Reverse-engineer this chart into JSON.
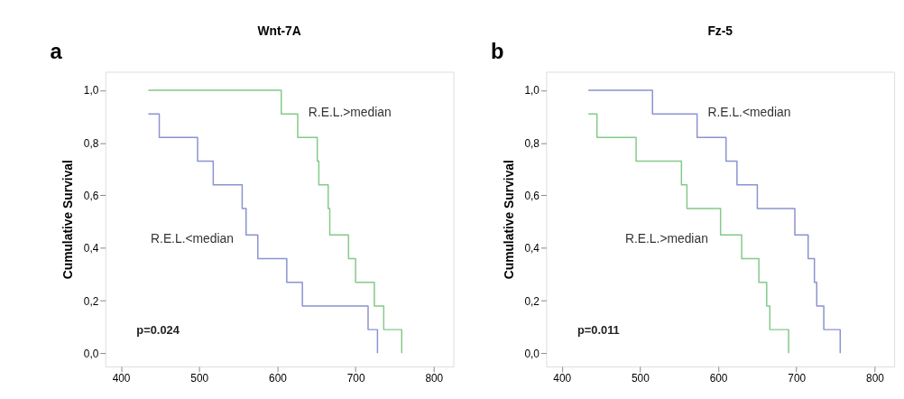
{
  "chart_data": [
    {
      "type": "step",
      "title": "Wnt-7A",
      "ylabel": "Cumulative Survival",
      "annotations": [
        "a",
        "p=0.024"
      ],
      "xlim": [
        380,
        825
      ],
      "xticks": [
        400,
        500,
        600,
        700,
        800
      ],
      "ylim": [
        -0.05,
        1.07
      ],
      "yticks": [
        {
          "value": 0,
          "label": "0,0"
        },
        {
          "value": 0.2,
          "label": "0,2"
        },
        {
          "value": 0.4,
          "label": "0,4"
        },
        {
          "value": 0.6,
          "label": "0,6"
        },
        {
          "value": 0.8,
          "label": "0,8"
        },
        {
          "value": 1,
          "label": "1,0"
        }
      ],
      "grid": false,
      "series": [
        {
          "name": "R.E.L.>median",
          "color": "#84c98a",
          "x": [
            435,
            605,
            626,
            651,
            653,
            665,
            667,
            691,
            700,
            724,
            736,
            759
          ],
          "values": [
            1,
            0.91,
            0.82,
            0.73,
            0.64,
            0.55,
            0.45,
            0.36,
            0.27,
            0.18,
            0.09,
            0
          ]
        },
        {
          "name": "R.E.L.<median",
          "color": "#8a93d0",
          "x": [
            435,
            449,
            498,
            518,
            555,
            560,
            575,
            612,
            632,
            716,
            728
          ],
          "values": [
            0.91,
            0.82,
            0.73,
            0.64,
            0.55,
            0.45,
            0.36,
            0.27,
            0.18,
            0.09,
            0
          ]
        }
      ]
    },
    {
      "type": "step",
      "title": "Fz-5",
      "ylabel": "Cumulative Survival",
      "annotations": [
        "b",
        "p=0.011"
      ],
      "xlim": [
        380,
        825
      ],
      "xticks": [
        400,
        500,
        600,
        700,
        800
      ],
      "ylim": [
        -0.05,
        1.07
      ],
      "yticks": [
        {
          "value": 0,
          "label": "0,0"
        },
        {
          "value": 0.2,
          "label": "0,2"
        },
        {
          "value": 0.4,
          "label": "0,4"
        },
        {
          "value": 0.6,
          "label": "0,6"
        },
        {
          "value": 0.8,
          "label": "0,8"
        },
        {
          "value": 1,
          "label": "1,0"
        }
      ],
      "grid": false,
      "series": [
        {
          "name": "R.E.L.<median",
          "color": "#8a93d0",
          "x": [
            434,
            516,
            573,
            610,
            624,
            650,
            698,
            715,
            723,
            726,
            735,
            756
          ],
          "values": [
            1,
            0.91,
            0.82,
            0.73,
            0.64,
            0.55,
            0.45,
            0.36,
            0.27,
            0.18,
            0.09,
            0
          ]
        },
        {
          "name": "R.E.L.>median",
          "color": "#84c98a",
          "x": [
            434,
            445,
            495,
            553,
            560,
            603,
            630,
            652,
            662,
            666,
            690
          ],
          "values": [
            0.91,
            0.82,
            0.73,
            0.64,
            0.55,
            0.45,
            0.36,
            0.27,
            0.18,
            0.09,
            0
          ]
        }
      ]
    }
  ]
}
